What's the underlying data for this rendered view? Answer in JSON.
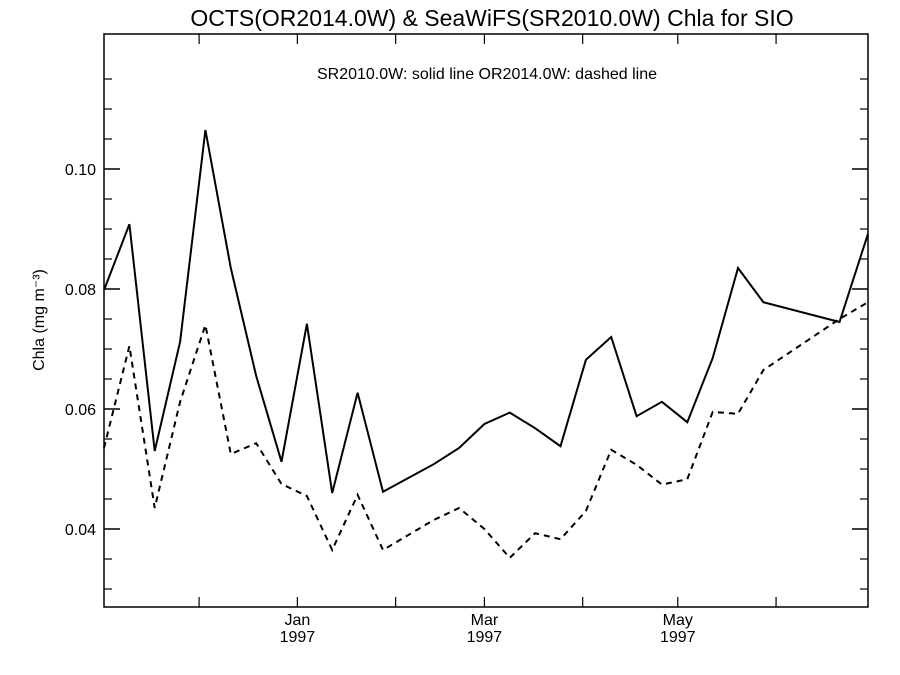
{
  "chart_data": {
    "type": "line",
    "title": "OCTS(OR2014.0W) & SeaWiFS(SR2010.0W)  Chla for SIO",
    "annotation": "SR2010.0W: solid line   OR2014.0W: dashed line",
    "ylabel": "Chla (mg m⁻³)",
    "ylim": [
      0.027,
      0.1225
    ],
    "yticks": [
      0.04,
      0.06,
      0.08,
      0.1
    ],
    "ytick_labels": [
      "0.04",
      "0.06",
      "0.08",
      "0.10"
    ],
    "xlim": [
      "1996-11-01",
      "1997-06-30"
    ],
    "xtick_labels": [
      {
        "date": "1997-01-01",
        "month": "Jan",
        "year": "1997"
      },
      {
        "date": "1997-03-01",
        "month": "Mar",
        "year": "1997"
      },
      {
        "date": "1997-05-01",
        "month": "May",
        "year": "1997"
      }
    ],
    "grid": false,
    "series": [
      {
        "style": "solid",
        "x": [
          "1996-11-01",
          "1996-11-09",
          "1996-11-17",
          "1996-11-25",
          "1996-12-03",
          "1996-12-11",
          "1996-12-19",
          "1996-12-27",
          "1997-01-04",
          "1997-01-12",
          "1997-01-20",
          "1997-01-28",
          "1997-02-13",
          "1997-02-21",
          "1997-03-01",
          "1997-03-09",
          "1997-03-17",
          "1997-03-25",
          "1997-04-02",
          "1997-04-10",
          "1997-04-18",
          "1997-04-26",
          "1997-05-04",
          "1997-05-12",
          "1997-05-20",
          "1997-05-28",
          "1997-06-21",
          "1997-06-30"
        ],
        "values": [
          0.0798,
          0.0908,
          0.053,
          0.0712,
          0.1065,
          0.0835,
          0.0655,
          0.0512,
          0.0742,
          0.046,
          0.0627,
          0.0462,
          0.0508,
          0.0535,
          0.0575,
          0.0594,
          0.0568,
          0.0538,
          0.0682,
          0.072,
          0.0588,
          0.0612,
          0.0578,
          0.0685,
          0.0835,
          0.0778,
          0.0745,
          0.0892
        ]
      },
      {
        "style": "dashed",
        "x": [
          "1996-11-01",
          "1996-11-09",
          "1996-11-17",
          "1996-11-25",
          "1996-12-03",
          "1996-12-11",
          "1996-12-19",
          "1996-12-27",
          "1997-01-04",
          "1997-01-12",
          "1997-01-20",
          "1997-01-28",
          "1997-02-13",
          "1997-02-21",
          "1997-03-01",
          "1997-03-09",
          "1997-03-17",
          "1997-03-25",
          "1997-04-02",
          "1997-04-10",
          "1997-04-18",
          "1997-04-26",
          "1997-05-04",
          "1997-05-12",
          "1997-05-20",
          "1997-05-28",
          "1997-06-21",
          "1997-06-30"
        ],
        "values": [
          0.0535,
          0.0705,
          0.0435,
          0.0612,
          0.074,
          0.0525,
          0.0543,
          0.0475,
          0.0455,
          0.0365,
          0.0457,
          0.0365,
          0.0415,
          0.0435,
          0.04,
          0.0352,
          0.0393,
          0.0383,
          0.043,
          0.0532,
          0.0507,
          0.0474,
          0.0483,
          0.0595,
          0.0592,
          0.0665,
          0.075,
          0.0778
        ]
      }
    ]
  }
}
